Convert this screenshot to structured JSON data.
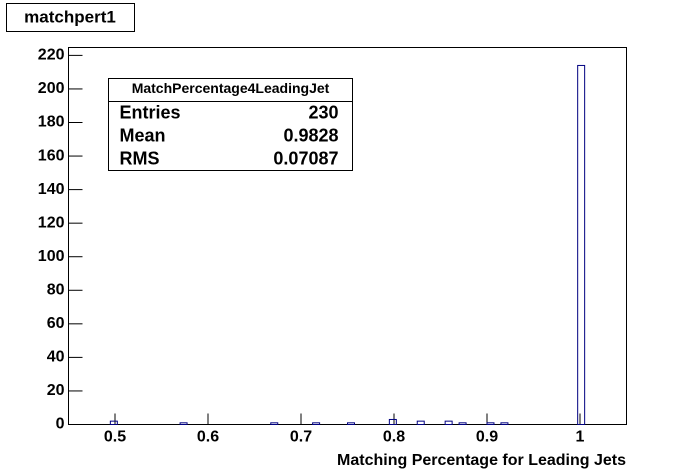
{
  "chart_data": {
    "type": "histogram",
    "title": "matchpert1",
    "x_label": "Matching Percentage for Leading Jets",
    "bins": [
      0.45,
      0.4575,
      0.465,
      0.4725,
      0.48,
      0.4875,
      0.495,
      0.5025,
      0.51,
      0.5175,
      0.525,
      0.5325,
      0.54,
      0.5475,
      0.555,
      0.5625,
      0.57,
      0.5775,
      0.585,
      0.5925,
      0.6,
      0.6075,
      0.615,
      0.6225,
      0.63,
      0.6375,
      0.645,
      0.6525,
      0.66,
      0.6675,
      0.675,
      0.6825,
      0.69,
      0.6975,
      0.705,
      0.7125,
      0.72,
      0.7275,
      0.735,
      0.7425,
      0.75,
      0.7575,
      0.765,
      0.7725,
      0.78,
      0.7875,
      0.795,
      0.8025,
      0.81,
      0.8175,
      0.825,
      0.8325,
      0.84,
      0.8475,
      0.855,
      0.8625,
      0.87,
      0.8775,
      0.885,
      0.8925,
      0.9,
      0.9075,
      0.915,
      0.9225,
      0.93,
      0.9375,
      0.945,
      0.9525,
      0.96,
      0.9675,
      0.975,
      0.9825,
      0.99,
      0.9975,
      1.005,
      1.0125,
      1.02,
      1.0275,
      1.035,
      1.0425,
      1.05
    ],
    "values": [
      0,
      0,
      0,
      0,
      0,
      0,
      2,
      0,
      0,
      0,
      0,
      0,
      0,
      0,
      0,
      0,
      1,
      0,
      0,
      0,
      0,
      0,
      0,
      0,
      0,
      0,
      0,
      0,
      0,
      1,
      0,
      0,
      0,
      0,
      0,
      1,
      0,
      0,
      0,
      0,
      1,
      0,
      0,
      0,
      0,
      0,
      3,
      0,
      0,
      0,
      2,
      0,
      0,
      0,
      2,
      0,
      1,
      0,
      0,
      0,
      1,
      0,
      1,
      0,
      0,
      0,
      0,
      0,
      0,
      0,
      0,
      0,
      0,
      214,
      0,
      0,
      0,
      0,
      0,
      0
    ],
    "color": "#000080",
    "xlim": [
      0.45,
      1.05
    ],
    "ylim": [
      0,
      224.7
    ],
    "xticks": [
      0.5,
      0.6,
      0.7,
      0.8,
      0.9,
      1
    ],
    "yticks": [
      0,
      20,
      40,
      60,
      80,
      100,
      120,
      140,
      160,
      180,
      200,
      220
    ],
    "stats": {
      "title": "MatchPercentage4LeadingJet",
      "rows": [
        [
          "Entries",
          "230"
        ],
        [
          "Mean",
          "0.9828"
        ],
        [
          "RMS",
          "0.07087"
        ]
      ]
    }
  }
}
